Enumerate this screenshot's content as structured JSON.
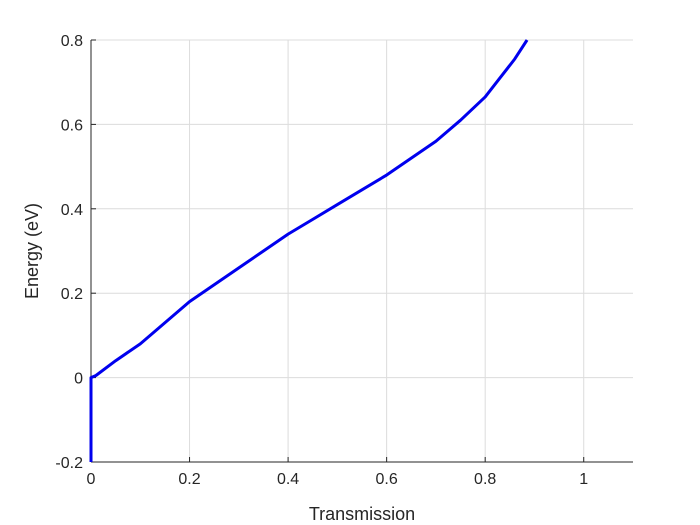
{
  "chart_data": {
    "type": "line",
    "xlabel": "Transmission",
    "ylabel": "Energy (eV)",
    "xlim": [
      0,
      1.1
    ],
    "ylim": [
      -0.2,
      0.8
    ],
    "xticks": [
      0,
      0.2,
      0.4,
      0.6,
      0.8,
      1
    ],
    "xtick_labels": [
      "0",
      "0.2",
      "0.4",
      "0.6",
      "0.8",
      "1"
    ],
    "yticks": [
      -0.2,
      0,
      0.2,
      0.4,
      0.6,
      0.8
    ],
    "ytick_labels": [
      "-0.2",
      "0",
      "0.2",
      "0.4",
      "0.6",
      "0.8"
    ],
    "grid": true,
    "series": [
      {
        "color": "#0000ee",
        "x": [
          0,
          0,
          0,
          0.01,
          0.05,
          0.1,
          0.15,
          0.2,
          0.25,
          0.3,
          0.35,
          0.4,
          0.45,
          0.5,
          0.55,
          0.6,
          0.65,
          0.7,
          0.75,
          0.8,
          0.83,
          0.86,
          0.885
        ],
        "y": [
          -0.2,
          -0.1,
          0,
          0.005,
          0.04,
          0.08,
          0.13,
          0.18,
          0.22,
          0.26,
          0.3,
          0.34,
          0.375,
          0.41,
          0.445,
          0.48,
          0.52,
          0.56,
          0.61,
          0.665,
          0.71,
          0.755,
          0.8
        ]
      }
    ]
  }
}
